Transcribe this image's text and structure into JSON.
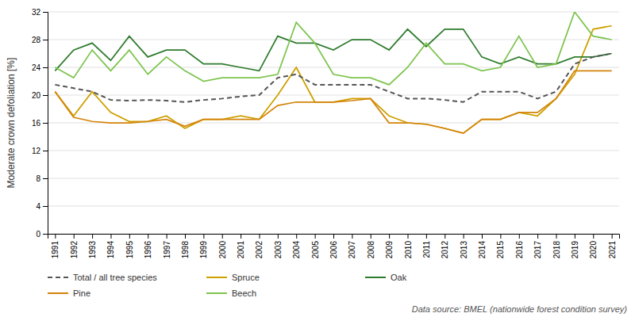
{
  "chart_data": {
    "type": "line",
    "ylabel": "Moderate crown defoliation [%]",
    "annotations": [
      "Data source: BMEL (nationwide forest condition survey)"
    ],
    "x": [
      1991,
      1992,
      1993,
      1994,
      1995,
      1996,
      1997,
      1998,
      1999,
      2000,
      2001,
      2002,
      2003,
      2004,
      2005,
      2006,
      2007,
      2008,
      2009,
      2010,
      2011,
      2012,
      2013,
      2014,
      2015,
      2016,
      2017,
      2018,
      2019,
      2020,
      2021
    ],
    "xlim": [
      1990.6,
      2021.4
    ],
    "xticks": [
      1991,
      1992,
      1993,
      1994,
      1995,
      1996,
      1997,
      1998,
      1999,
      2000,
      2001,
      2002,
      2003,
      2004,
      2005,
      2006,
      2007,
      2008,
      2009,
      2010,
      2011,
      2012,
      2013,
      2014,
      2015,
      2016,
      2017,
      2018,
      2019,
      2020,
      2021
    ],
    "ylim": [
      0,
      32
    ],
    "yticks": [
      0,
      4,
      8,
      12,
      16,
      20,
      24,
      28,
      32
    ],
    "grid": true,
    "legend": "bottom",
    "series": [
      {
        "name": "Total / all tree species",
        "color": "#555555",
        "line_style": "dashed",
        "values": [
          21.5,
          21.0,
          20.5,
          19.3,
          19.2,
          19.3,
          19.2,
          19.0,
          19.3,
          19.5,
          19.8,
          20.0,
          22.5,
          23.0,
          21.5,
          21.5,
          21.5,
          21.5,
          20.5,
          19.5,
          19.5,
          19.3,
          19.0,
          20.5,
          20.5,
          20.5,
          19.5,
          20.5,
          24.5,
          25.5,
          26.0
        ]
      },
      {
        "name": "Spruce",
        "color": "#CDA000",
        "line_style": "solid",
        "values": [
          20.5,
          17.0,
          20.5,
          17.5,
          16.2,
          16.2,
          17.0,
          15.2,
          16.5,
          16.5,
          17.0,
          16.5,
          20.0,
          24.0,
          19.0,
          19.0,
          19.5,
          19.5,
          17.0,
          16.0,
          15.8,
          15.2,
          14.5,
          16.5,
          16.5,
          17.5,
          17.0,
          19.5,
          23.0,
          29.5,
          30.0
        ]
      },
      {
        "name": "Oak",
        "color": "#2E7B2E",
        "line_style": "solid",
        "values": [
          23.5,
          26.5,
          27.5,
          25.0,
          28.5,
          25.5,
          26.5,
          26.5,
          24.5,
          24.5,
          24.0,
          23.5,
          28.5,
          27.5,
          27.5,
          26.5,
          28.0,
          28.0,
          26.5,
          29.5,
          27.0,
          29.5,
          29.5,
          25.5,
          24.5,
          25.5,
          24.5,
          24.5,
          25.5,
          25.5,
          26.0
        ]
      },
      {
        "name": "Pine",
        "color": "#D4840A",
        "line_style": "solid",
        "values": [
          20.5,
          16.8,
          16.2,
          16.0,
          16.0,
          16.2,
          16.5,
          15.5,
          16.5,
          16.5,
          16.5,
          16.5,
          18.5,
          19.0,
          19.0,
          19.0,
          19.2,
          19.5,
          16.0,
          16.0,
          15.8,
          15.2,
          14.5,
          16.5,
          16.5,
          17.5,
          17.5,
          19.5,
          23.5,
          23.5,
          23.5
        ]
      },
      {
        "name": "Beech",
        "color": "#7DC44E",
        "line_style": "solid",
        "values": [
          24.0,
          22.5,
          26.5,
          23.5,
          26.5,
          23.0,
          25.5,
          23.5,
          22.0,
          22.5,
          22.5,
          22.5,
          23.0,
          30.5,
          27.5,
          23.0,
          22.5,
          22.5,
          21.5,
          24.0,
          27.5,
          24.5,
          24.5,
          23.5,
          24.0,
          28.5,
          24.0,
          24.5,
          32.0,
          28.5,
          28.0
        ]
      }
    ]
  }
}
